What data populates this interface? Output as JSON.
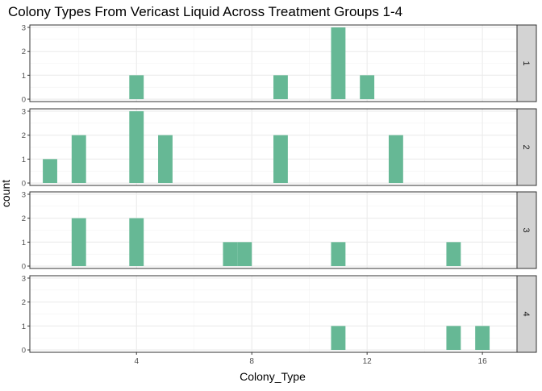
{
  "chart_data": {
    "type": "bar",
    "title": "Colony Types From Vericast Liquid Across Treatment Groups 1-4",
    "xlabel": "Colony_Type",
    "ylabel": "count",
    "xlim": [
      0.3,
      17.2
    ],
    "ylim": [
      0,
      3
    ],
    "x_ticks": [
      4,
      8,
      12,
      16
    ],
    "y_ticks": [
      0,
      1,
      2,
      3
    ],
    "grid": true,
    "bar_color": "#66b895",
    "strip_color": "#d3d3d3",
    "bin_width": 0.5,
    "facets": [
      {
        "label": "1",
        "bars": [
          {
            "x": 4,
            "count": 1
          },
          {
            "x": 9,
            "count": 1
          },
          {
            "x": 11,
            "count": 3
          },
          {
            "x": 12,
            "count": 1
          }
        ]
      },
      {
        "label": "2",
        "bars": [
          {
            "x": 1,
            "count": 1
          },
          {
            "x": 2,
            "count": 2
          },
          {
            "x": 4,
            "count": 3
          },
          {
            "x": 5,
            "count": 2
          },
          {
            "x": 9,
            "count": 2
          },
          {
            "x": 13,
            "count": 2
          }
        ]
      },
      {
        "label": "3",
        "bars": [
          {
            "x": 2,
            "count": 2
          },
          {
            "x": 4,
            "count": 2
          },
          {
            "x": 7.25,
            "count": 1
          },
          {
            "x": 7.75,
            "count": 1
          },
          {
            "x": 11,
            "count": 1
          },
          {
            "x": 15,
            "count": 1
          }
        ]
      },
      {
        "label": "4",
        "bars": [
          {
            "x": 11,
            "count": 1
          },
          {
            "x": 15,
            "count": 1
          },
          {
            "x": 16,
            "count": 1
          }
        ]
      }
    ]
  }
}
